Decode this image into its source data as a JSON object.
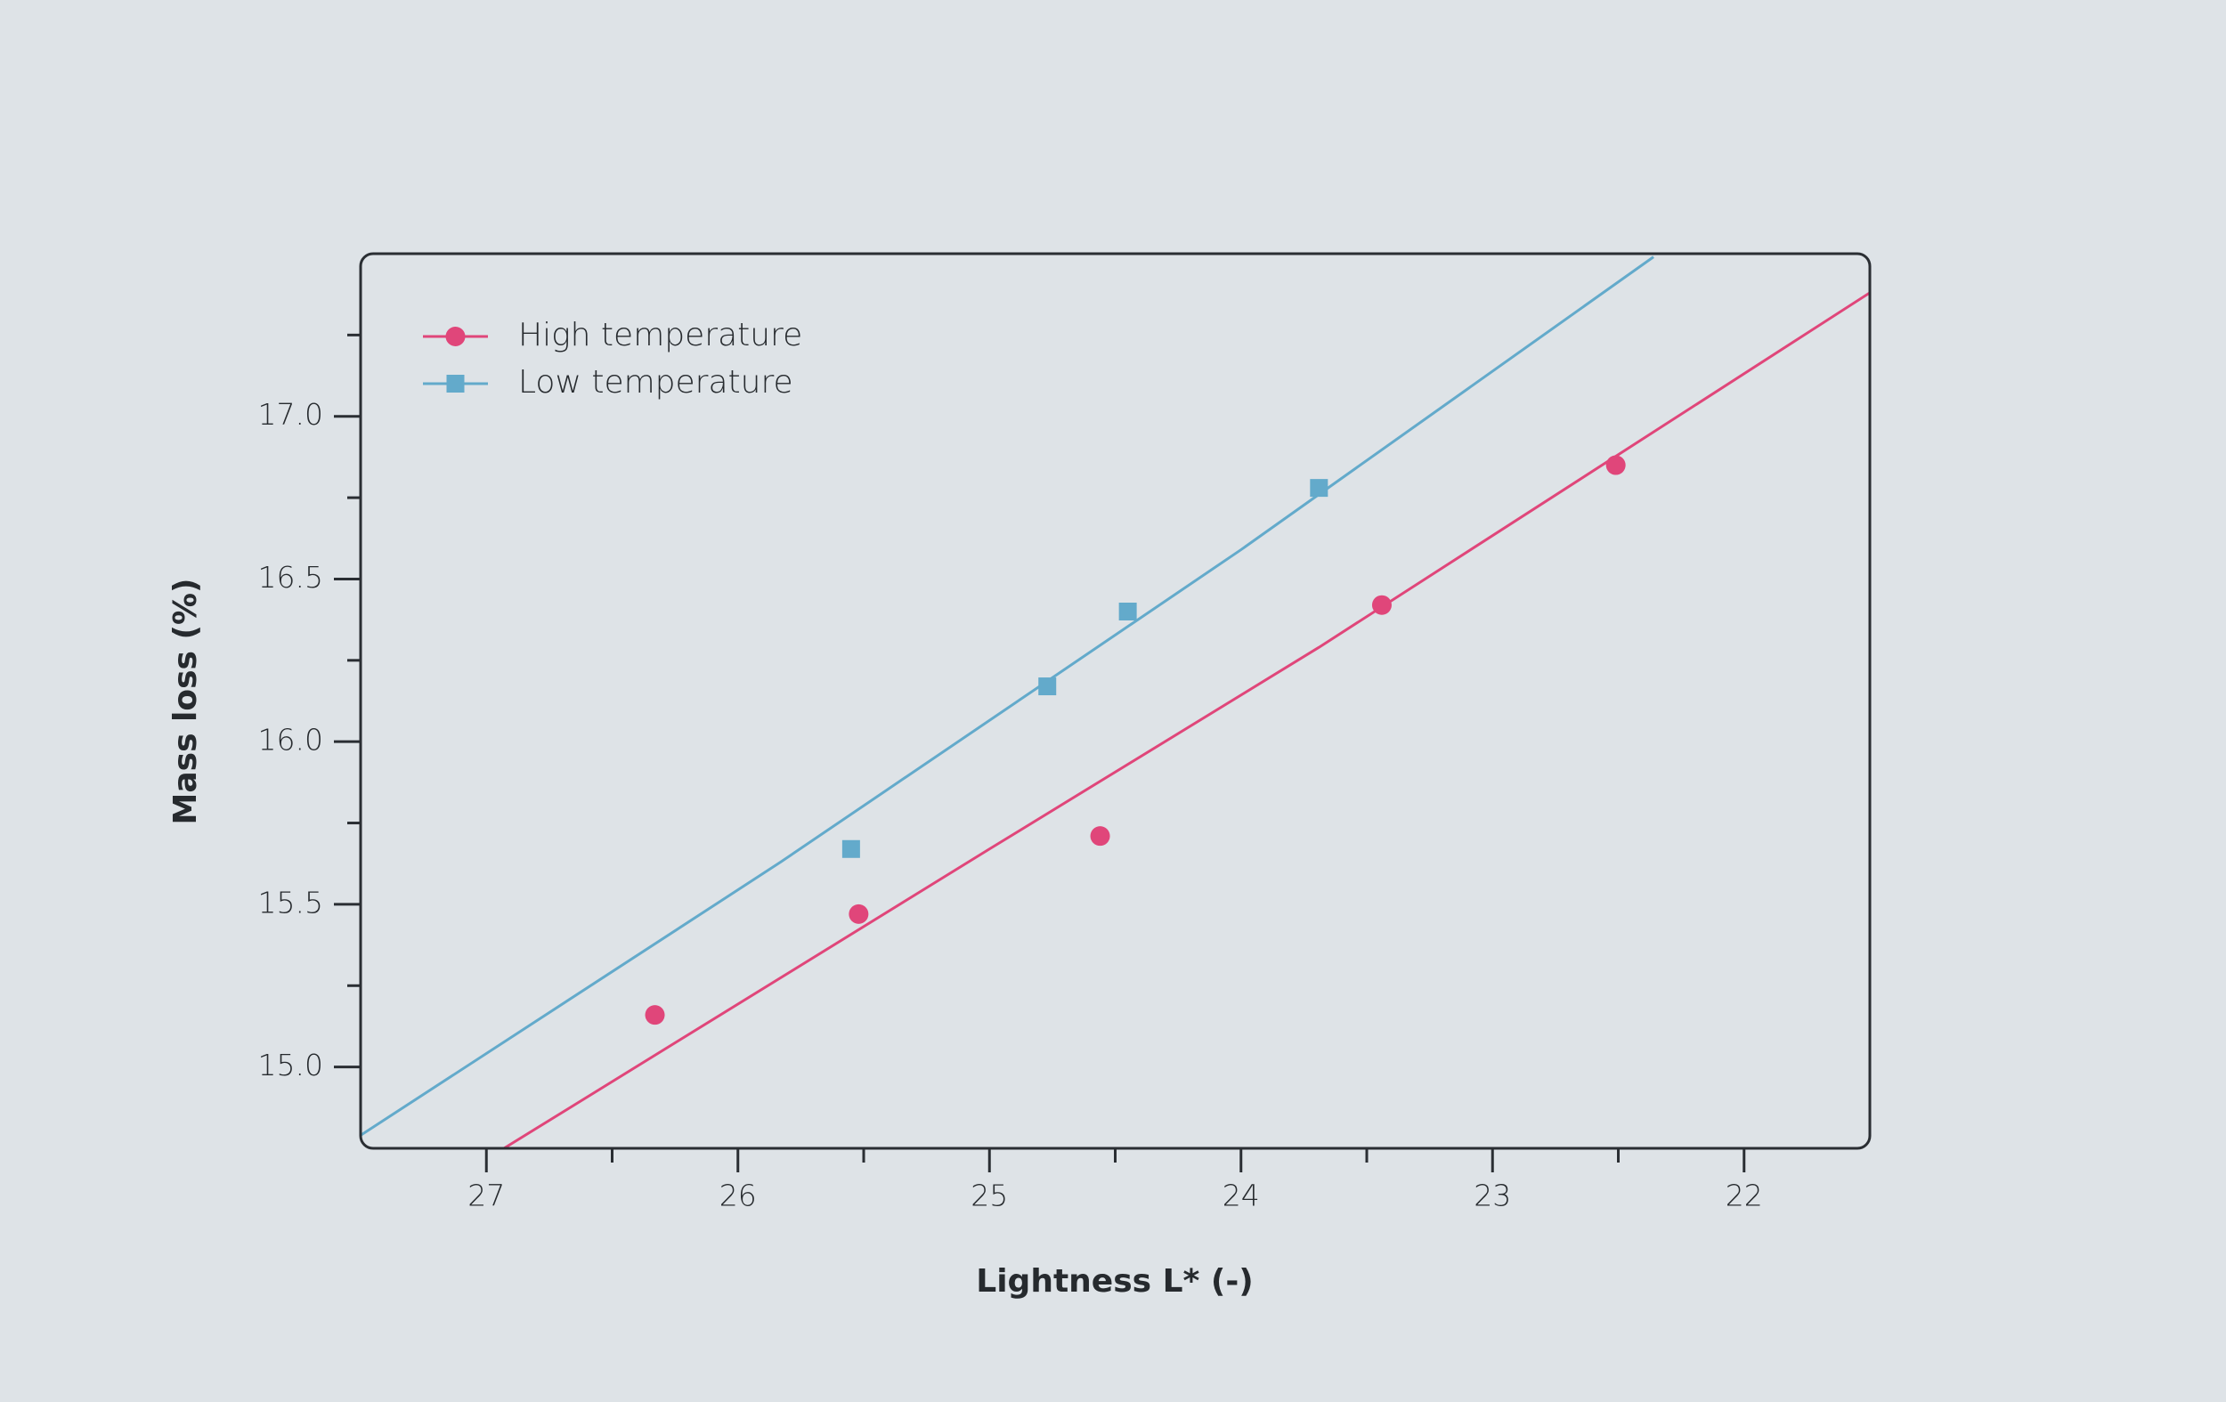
{
  "chart_data": {
    "type": "scatter",
    "x_label": "Lightness L* (-)",
    "y_label": "Mass loss (%)",
    "xlim": [
      27.5,
      21.5
    ],
    "ylim": [
      14.75,
      17.5
    ],
    "xticks": [
      27,
      26,
      25,
      24,
      23,
      22
    ],
    "xticks_minor": [
      26.5,
      25.5,
      24.5,
      23.5,
      22.5
    ],
    "yticks": [
      {
        "value": 15,
        "label": "15.0"
      },
      {
        "value": 15.5,
        "label": "15.5"
      },
      {
        "value": 16,
        "label": "16.0"
      },
      {
        "value": 16.5,
        "label": "16.5"
      },
      {
        "value": 17,
        "label": "17.0"
      }
    ],
    "yticks_minor": [
      15.25,
      15.75,
      16.25,
      16.75,
      17.25
    ],
    "legend": "upper left",
    "series": [
      {
        "name": "High temperature",
        "color": "#e0467a",
        "marker": "circle",
        "x": [
          26.33,
          25.52,
          24.56,
          23.44,
          22.51
        ],
        "values": [
          15.16,
          15.47,
          15.71,
          16.42,
          16.85
        ],
        "fit": {
          "x": [
            26.93,
            25.0,
            23.69,
            21.5
          ],
          "values": [
            14.75,
            15.67,
            16.29,
            17.38
          ]
        }
      },
      {
        "name": "Low temperature",
        "color": "#63aacb",
        "marker": "square",
        "x": [
          25.55,
          24.77,
          24.45,
          23.69
        ],
        "values": [
          15.67,
          16.17,
          16.4,
          16.78
        ],
        "fit": {
          "x": [
            27.5,
            25.83,
            24.0,
            22.36
          ],
          "values": [
            14.79,
            15.63,
            16.59,
            17.49
          ]
        }
      }
    ]
  }
}
